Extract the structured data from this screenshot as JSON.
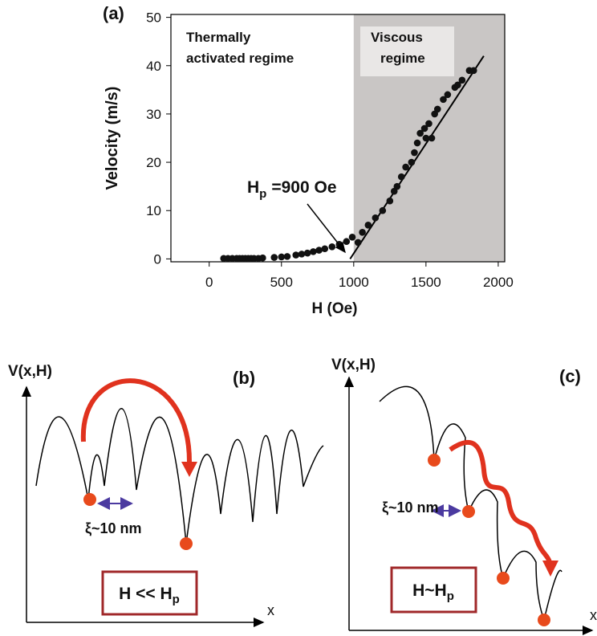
{
  "chart_data": {
    "type": "scatter",
    "panel_label": "(a)",
    "x_label": "H (Oe)",
    "y_label": "Velocity (m/s)",
    "xlim": [
      -265,
      2045
    ],
    "ylim": [
      -0.6,
      50.6
    ],
    "xticks": [
      0,
      500,
      1000,
      1500,
      2000
    ],
    "yticks": [
      0,
      10,
      20,
      30,
      40,
      50
    ],
    "color": "#111111",
    "shade_from": 1000,
    "shade_color": "#c9c6c5",
    "regions": [
      {
        "lines": [
          "Thermally",
          "activated regime"
        ]
      },
      {
        "lines": [
          "Viscous",
          "regime"
        ]
      }
    ],
    "annotation": {
      "symbol": "H",
      "subscript": "p",
      "text": "=900 Oe"
    },
    "fit": {
      "x": [
        975,
        1900
      ],
      "y": [
        0,
        42
      ]
    },
    "x": [
      100,
      130,
      160,
      190,
      210,
      230,
      250,
      270,
      290,
      310,
      340,
      370,
      450,
      500,
      540,
      600,
      640,
      680,
      720,
      760,
      800,
      850,
      900,
      950,
      990,
      1030,
      1060,
      1100,
      1150,
      1200,
      1250,
      1280,
      1300,
      1330,
      1360,
      1400,
      1420,
      1440,
      1460,
      1490,
      1500,
      1520,
      1540,
      1560,
      1580,
      1620,
      1650,
      1700,
      1720,
      1750,
      1800,
      1830
    ],
    "values": [
      0.1,
      0.1,
      0.1,
      0.1,
      0.1,
      0.1,
      0.1,
      0.1,
      0.1,
      0.1,
      0.1,
      0.2,
      0.3,
      0.4,
      0.5,
      0.8,
      1.0,
      1.2,
      1.5,
      1.8,
      2.1,
      2.5,
      3.0,
      3.6,
      4.5,
      3.4,
      5.5,
      7,
      8.5,
      10,
      12,
      14,
      15,
      17,
      19,
      20,
      22,
      24,
      26,
      27,
      25,
      28,
      25,
      30,
      31,
      33,
      34,
      35.5,
      36,
      37,
      39,
      39
    ]
  },
  "diagrams": {
    "b": {
      "axis_label": "V(x,H)",
      "panel_label": "(b)",
      "x_label": "x",
      "length_label": "ξ~10 nm",
      "box": {
        "text": "H << H",
        "subscript": "p"
      }
    },
    "c": {
      "axis_label": "V(x,H)",
      "panel_label": "(c)",
      "x_label": "x",
      "length_label": "ξ~10 nm",
      "box": {
        "text": "H~H",
        "subscript": "p"
      }
    }
  }
}
